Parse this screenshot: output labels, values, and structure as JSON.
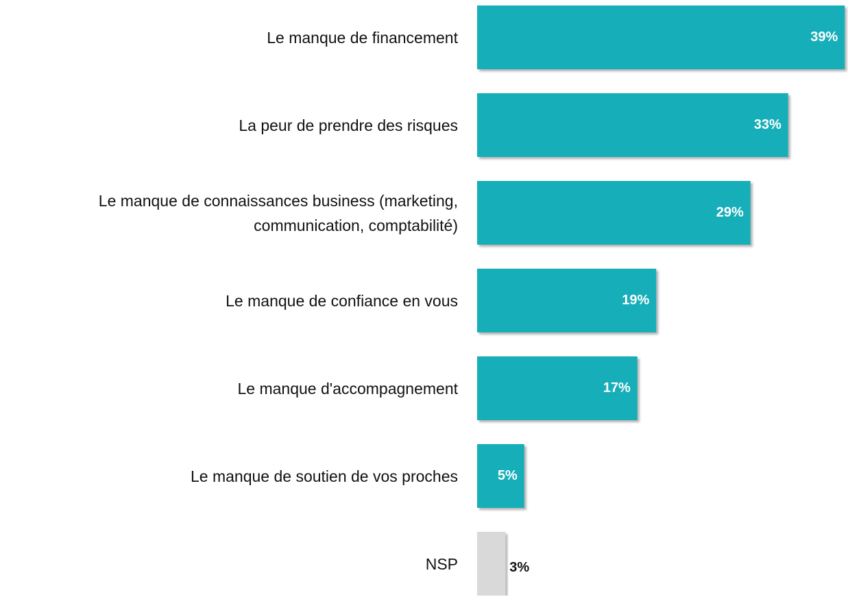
{
  "chart_data": {
    "type": "barh",
    "categories": [
      "Le manque de financement",
      "La peur de prendre des risques",
      "Le manque de connaissances business (marketing, communication, comptabilité)",
      "Le manque de confiance en vous",
      "Le manque d'accompagnement",
      "Le manque de soutien de vos proches",
      "NSP"
    ],
    "values": [
      39,
      33,
      29,
      19,
      17,
      5,
      3
    ],
    "value_labels": [
      "39%",
      "33%",
      "29%",
      "19%",
      "17%",
      "5%",
      "3%"
    ],
    "colors": [
      "#14aeb8",
      "#14aeb8",
      "#14aeb8",
      "#14aeb8",
      "#14aeb8",
      "#14aeb8",
      "#d9d9d9"
    ]
  }
}
